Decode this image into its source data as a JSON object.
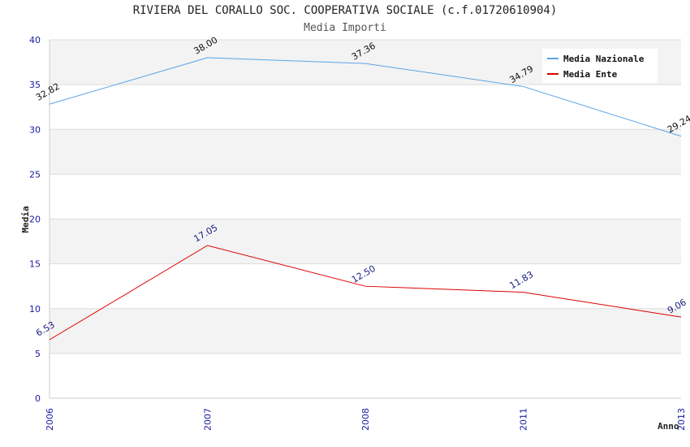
{
  "chart_data": {
    "type": "line",
    "title": "RIVIERA DEL CORALLO SOC. COOPERATIVA SOCIALE (c.f.01720610904)",
    "subtitle": "Media Importi",
    "xlabel": "Anno",
    "ylabel": "Media",
    "categories": [
      "2006",
      "2007",
      "2008",
      "2011",
      "2013"
    ],
    "ylim": [
      0,
      40
    ],
    "yticks": [
      0,
      5,
      10,
      15,
      20,
      25,
      30,
      35,
      40
    ],
    "grid": true,
    "legend": "top-right",
    "series": [
      {
        "name": "Media Nazionale",
        "color": "#5aa5e6",
        "label_color": "#111111",
        "values": [
          32.82,
          38.0,
          37.36,
          34.79,
          29.24
        ],
        "labels": [
          "32.82",
          "38.00",
          "37.36",
          "34.79",
          "29.24"
        ]
      },
      {
        "name": "Media Ente",
        "color": "#e00000",
        "label_color": "#1a1a80",
        "values": [
          6.53,
          17.05,
          12.5,
          11.83,
          9.06
        ],
        "labels": [
          "6.53",
          "17.05",
          "12.50",
          "11.83",
          "9.06"
        ]
      }
    ]
  }
}
